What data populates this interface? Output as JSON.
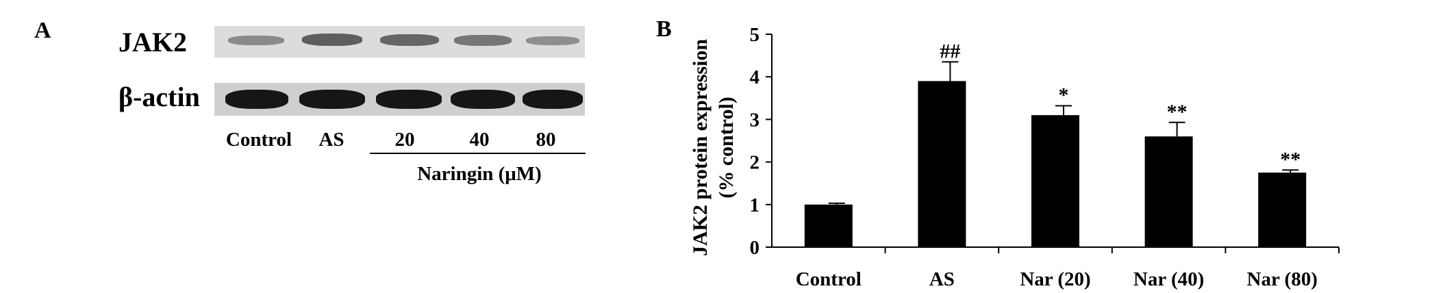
{
  "panel_a": {
    "letter": "A",
    "rows": [
      {
        "label": "JAK2",
        "band_color": "#5e5e5e"
      },
      {
        "label": "β-actin",
        "band_color": "#161616"
      }
    ],
    "lanes": [
      "Control",
      "AS",
      "20",
      "40",
      "80"
    ],
    "treatment_label": "Naringin (μM)"
  },
  "panel_b": {
    "letter": "B"
  },
  "chart_data": {
    "type": "bar",
    "categories": [
      "Control",
      "AS",
      "Nar (20)",
      "Nar (40)",
      "Nar (80)"
    ],
    "values": [
      1.0,
      3.9,
      3.1,
      2.6,
      1.75
    ],
    "errors": [
      0.03,
      0.45,
      0.22,
      0.33,
      0.06
    ],
    "annotations": [
      "",
      "##",
      "*",
      "**",
      "**"
    ],
    "ylabel_lines": [
      "JAK2 protein expression",
      "(% control)"
    ],
    "ylim": [
      0,
      5
    ],
    "yticks": [
      0,
      1,
      2,
      3,
      4,
      5
    ],
    "bar_color": "#000000",
    "grid": false,
    "legend": "none"
  }
}
